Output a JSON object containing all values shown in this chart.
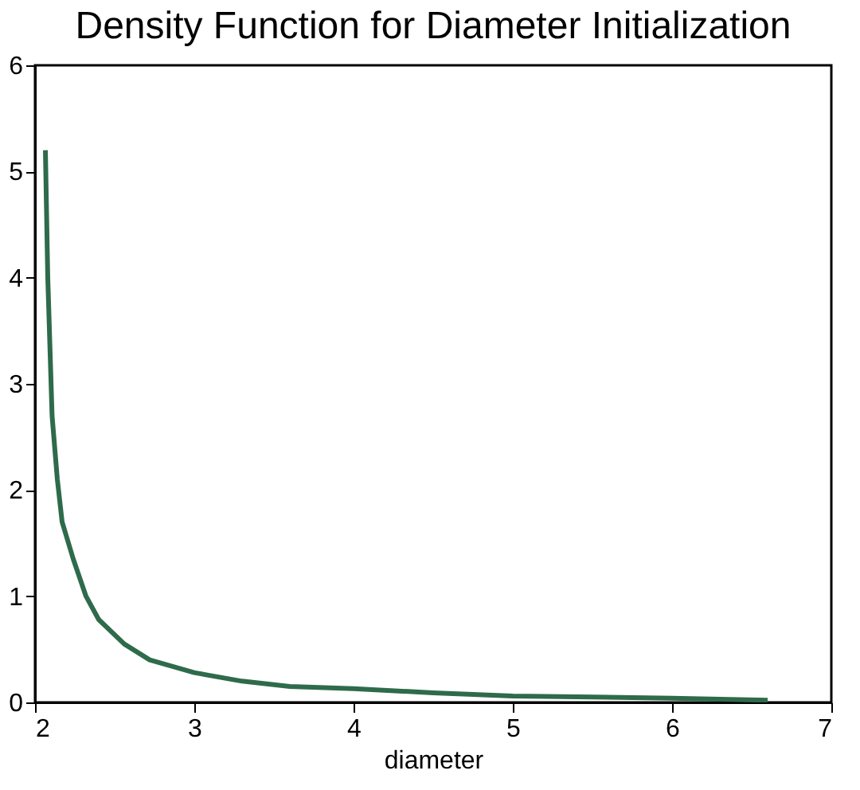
{
  "chart_data": {
    "type": "line",
    "title": "Density Function for Diameter Initialization",
    "xlabel": "diameter",
    "series": [
      {
        "color": "#2e6b4a",
        "x": [
          2.065,
          2.08,
          2.107,
          2.14,
          2.17,
          2.24,
          2.32,
          2.4,
          2.56,
          2.72,
          3.0,
          3.3,
          3.6,
          4.0,
          4.5,
          5.0,
          5.5,
          6.0,
          6.6
        ],
        "values": [
          5.2,
          4.0,
          2.7,
          2.1,
          1.7,
          1.35,
          1.0,
          0.78,
          0.55,
          0.4,
          0.28,
          0.2,
          0.15,
          0.13,
          0.09,
          0.06,
          0.05,
          0.04,
          0.02
        ]
      }
    ],
    "xlim": [
      2,
      7
    ],
    "xticks": [
      2,
      3,
      4,
      5,
      6,
      7
    ],
    "ylim": [
      0,
      6
    ],
    "yticks": [
      0,
      1,
      2,
      3,
      4,
      5,
      6
    ],
    "grid": false,
    "marker": "none",
    "line_style": "solid"
  }
}
